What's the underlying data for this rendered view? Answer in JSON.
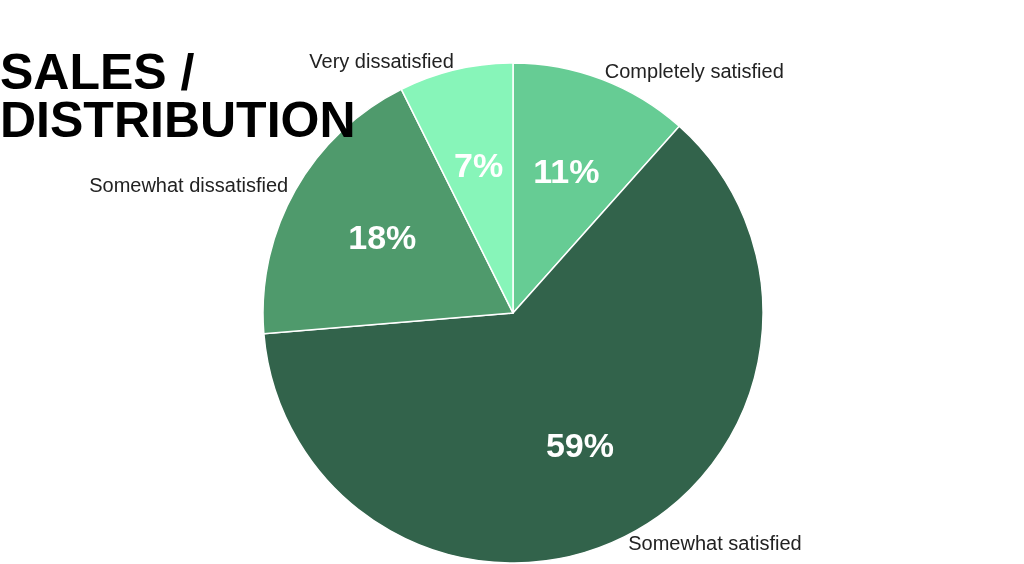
{
  "chart_data": {
    "type": "pie",
    "title": "SALES / DISTRIBUTION",
    "categories": [
      "Completely satisfied",
      "Somewhat satisfied",
      "Somewhat dissatisfied",
      "Very dissatisfied"
    ],
    "values": [
      11,
      59,
      18,
      7
    ],
    "value_labels": [
      "11%",
      "59%",
      "18%",
      "7%"
    ],
    "colors": [
      "#66cc94",
      "#32634b",
      "#4f9a6c",
      "#87f5b9"
    ],
    "legend": false
  }
}
